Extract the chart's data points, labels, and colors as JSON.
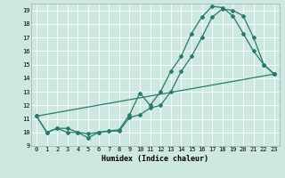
{
  "xlabel": "Humidex (Indice chaleur)",
  "bg_color": "#cce8e0",
  "grid_color": "#ffffff",
  "line_color": "#2a7a6a",
  "xlim": [
    -0.5,
    23.5
  ],
  "ylim": [
    9,
    19.5
  ],
  "xticks": [
    0,
    1,
    2,
    3,
    4,
    5,
    6,
    7,
    8,
    9,
    10,
    11,
    12,
    13,
    14,
    15,
    16,
    17,
    18,
    19,
    20,
    21,
    22,
    23
  ],
  "yticks": [
    9,
    10,
    11,
    12,
    13,
    14,
    15,
    16,
    17,
    18,
    19
  ],
  "series1_x": [
    0,
    1,
    2,
    3,
    4,
    5,
    6,
    7,
    8,
    9,
    10,
    11,
    12,
    13,
    14,
    15,
    16,
    17,
    18,
    19,
    20,
    21,
    22,
    23
  ],
  "series1_y": [
    11.2,
    10.0,
    10.3,
    10.3,
    10.0,
    9.6,
    10.0,
    10.1,
    10.2,
    11.3,
    12.9,
    12.0,
    13.0,
    14.5,
    15.6,
    17.3,
    18.5,
    19.3,
    19.2,
    18.6,
    17.3,
    16.0,
    15.0,
    14.3
  ],
  "series2_x": [
    0,
    1,
    2,
    3,
    4,
    5,
    6,
    7,
    8,
    9,
    10,
    11,
    12,
    13,
    14,
    15,
    16,
    17,
    18,
    19,
    20,
    21,
    22,
    23
  ],
  "series2_y": [
    11.2,
    10.0,
    10.3,
    10.0,
    10.0,
    9.9,
    10.0,
    10.1,
    10.1,
    11.1,
    11.3,
    11.8,
    12.0,
    13.0,
    14.5,
    15.6,
    17.0,
    18.5,
    19.1,
    19.0,
    18.6,
    17.0,
    15.0,
    14.3
  ],
  "series3_x": [
    0,
    23
  ],
  "series3_y": [
    11.2,
    14.3
  ],
  "xlabel_fontsize": 6,
  "tick_fontsize": 5,
  "marker_size": 2,
  "line_width": 0.9
}
